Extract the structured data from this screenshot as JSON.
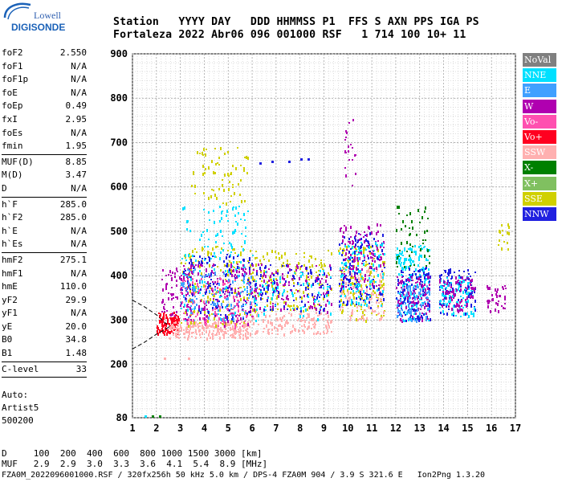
{
  "logo": {
    "line1": "Lowell",
    "line2": "DIGISONDE"
  },
  "header": {
    "labels": "Station   YYYY DAY   DDD HHMMSS P1  FFS S AXN PPS IGA PS",
    "values": "Fortaleza 2022 Abr06 096 001000 RSF   1 714 100 10+ 11"
  },
  "params": {
    "group1": [
      {
        "k": "foF2",
        "v": "2.550"
      },
      {
        "k": "foF1",
        "v": "N/A"
      },
      {
        "k": "foF1p",
        "v": "N/A"
      },
      {
        "k": "foE",
        "v": "N/A"
      },
      {
        "k": "foEp",
        "v": "0.49"
      },
      {
        "k": "fxI",
        "v": "2.95"
      },
      {
        "k": "foEs",
        "v": "N/A"
      },
      {
        "k": "fmin",
        "v": "1.95"
      }
    ],
    "group2": [
      {
        "k": "MUF(D)",
        "v": "8.85"
      },
      {
        "k": "M(D)",
        "v": "3.47"
      },
      {
        "k": "D",
        "v": "N/A"
      }
    ],
    "group3": [
      {
        "k": "h`F",
        "v": "285.0"
      },
      {
        "k": "h`F2",
        "v": "285.0"
      },
      {
        "k": "h`E",
        "v": "N/A"
      },
      {
        "k": "h`Es",
        "v": "N/A"
      }
    ],
    "group4": [
      {
        "k": "hmF2",
        "v": "275.1"
      },
      {
        "k": "hmF1",
        "v": "N/A"
      },
      {
        "k": "hmE",
        "v": "110.0"
      },
      {
        "k": "yF2",
        "v": "29.9"
      },
      {
        "k": "yF1",
        "v": "N/A"
      },
      {
        "k": "yE",
        "v": "20.0"
      },
      {
        "k": "B0",
        "v": "34.8"
      },
      {
        "k": "B1",
        "v": "1.48"
      }
    ],
    "group5": [
      {
        "k": "C-level",
        "v": "33"
      }
    ]
  },
  "auto": {
    "line1": "Auto:",
    "line2": "Artist5",
    "line3": "500200"
  },
  "dtable": {
    "row1": "D     100  200  400  600  800 1000 1500 3000 [km]",
    "row2": "MUF   2.9  2.9  3.0  3.3  3.6  4.1  5.4  8.9 [MHz]"
  },
  "footer": "FZA0M_2022096001000.RSF / 320fx256h 50 kHz 5.0 km / DPS-4 FZA0M 904 / 3.9 S 321.6 E   Ion2Png 1.3.20",
  "legend": [
    {
      "name": "NoVal",
      "color": "#808080"
    },
    {
      "name": "NNE",
      "color": "#00e0ff"
    },
    {
      "name": "E",
      "color": "#40a0ff"
    },
    {
      "name": "W",
      "color": "#b000b0"
    },
    {
      "name": "Vo-",
      "color": "#ff50b0"
    },
    {
      "name": "Vo+",
      "color": "#ff0020"
    },
    {
      "name": "SSW",
      "color": "#ffb0b0"
    },
    {
      "name": "X-",
      "color": "#008000"
    },
    {
      "name": "X+",
      "color": "#80c060"
    },
    {
      "name": "SSE",
      "color": "#d0d000"
    },
    {
      "name": "NNW",
      "color": "#2020e0"
    }
  ],
  "chart_data": {
    "type": "scatter",
    "title": "",
    "xlabel": "",
    "ylabel": "",
    "xlim": [
      1,
      17
    ],
    "ylim": [
      80,
      900
    ],
    "x_ticks": [
      1,
      2,
      3,
      4,
      5,
      6,
      7,
      8,
      9,
      10,
      11,
      12,
      13,
      14,
      15,
      16,
      17
    ],
    "y_ticks": [
      80,
      200,
      300,
      400,
      500,
      600,
      700,
      800,
      900
    ],
    "grid": true,
    "legend_position": "right",
    "clusters": [
      {
        "x": [
          2.0,
          2.9
        ],
        "y": [
          270,
          320
        ],
        "series": "Vo+",
        "density": 120
      },
      {
        "x": [
          2.2,
          3.5
        ],
        "y": [
          300,
          420
        ],
        "series": "W",
        "density": 80
      },
      {
        "x": [
          2.5,
          6.0
        ],
        "y": [
          260,
          300
        ],
        "series": "SSW",
        "density": 220
      },
      {
        "x": [
          3.0,
          6.0
        ],
        "y": [
          290,
          470
        ],
        "series": "SSE",
        "density": 160
      },
      {
        "x": [
          3.0,
          6.0
        ],
        "y": [
          300,
          560
        ],
        "series": "NNE",
        "density": 140
      },
      {
        "x": [
          3.0,
          6.0
        ],
        "y": [
          290,
          430
        ],
        "series": "W",
        "density": 140
      },
      {
        "x": [
          3.0,
          6.0
        ],
        "y": [
          300,
          450
        ],
        "series": "NNW",
        "density": 110
      },
      {
        "x": [
          3.0,
          6.0
        ],
        "y": [
          280,
          400
        ],
        "series": "Vo-",
        "density": 90
      },
      {
        "x": [
          3.0,
          6.0
        ],
        "y": [
          300,
          420
        ],
        "series": "E",
        "density": 100
      },
      {
        "x": [
          3.4,
          5.8
        ],
        "y": [
          560,
          690
        ],
        "series": "SSE",
        "density": 70
      },
      {
        "x": [
          6.0,
          9.3
        ],
        "y": [
          270,
          320
        ],
        "series": "SSW",
        "density": 130
      },
      {
        "x": [
          6.0,
          9.3
        ],
        "y": [
          320,
          460
        ],
        "series": "SSE",
        "density": 150
      },
      {
        "x": [
          6.0,
          9.3
        ],
        "y": [
          320,
          430
        ],
        "series": "W",
        "density": 110
      },
      {
        "x": [
          6.0,
          9.3
        ],
        "y": [
          320,
          430
        ],
        "series": "NNW",
        "density": 90
      },
      {
        "x": [
          6.0,
          9.3
        ],
        "y": [
          300,
          420
        ],
        "series": "NNE",
        "density": 70
      },
      {
        "x": [
          9.6,
          11.5
        ],
        "y": [
          300,
          470
        ],
        "series": "SSE",
        "density": 150
      },
      {
        "x": [
          9.6,
          11.5
        ],
        "y": [
          300,
          420
        ],
        "series": "SSW",
        "density": 120
      },
      {
        "x": [
          9.6,
          11.5
        ],
        "y": [
          360,
          520
        ],
        "series": "W",
        "density": 130
      },
      {
        "x": [
          9.6,
          11.5
        ],
        "y": [
          330,
          500
        ],
        "series": "NNW",
        "density": 110
      },
      {
        "x": [
          9.6,
          11.5
        ],
        "y": [
          330,
          480
        ],
        "series": "NNE",
        "density": 90
      },
      {
        "x": [
          9.8,
          10.3
        ],
        "y": [
          600,
          760
        ],
        "series": "W",
        "density": 20
      },
      {
        "x": [
          12.0,
          13.4
        ],
        "y": [
          300,
          470
        ],
        "series": "NNE",
        "density": 150
      },
      {
        "x": [
          12.0,
          13.4
        ],
        "y": [
          300,
          420
        ],
        "series": "NNW",
        "density": 110
      },
      {
        "x": [
          12.0,
          13.4
        ],
        "y": [
          300,
          400
        ],
        "series": "W",
        "density": 90
      },
      {
        "x": [
          12.0,
          13.4
        ],
        "y": [
          420,
          560
        ],
        "series": "X-",
        "density": 50
      },
      {
        "x": [
          12.0,
          13.4
        ],
        "y": [
          300,
          380
        ],
        "series": "E",
        "density": 80
      },
      {
        "x": [
          13.8,
          15.3
        ],
        "y": [
          310,
          420
        ],
        "series": "NNW",
        "density": 100
      },
      {
        "x": [
          13.8,
          15.3
        ],
        "y": [
          310,
          400
        ],
        "series": "NNE",
        "density": 80
      },
      {
        "x": [
          13.8,
          15.3
        ],
        "y": [
          320,
          400
        ],
        "series": "W",
        "density": 70
      },
      {
        "x": [
          15.8,
          16.6
        ],
        "y": [
          320,
          380
        ],
        "series": "W",
        "density": 40
      },
      {
        "x": [
          16.2,
          16.7
        ],
        "y": [
          460,
          520
        ],
        "series": "SSE",
        "density": 15
      }
    ],
    "isolated_points": [
      {
        "x": 6.3,
        "y": 655,
        "series": "NNW"
      },
      {
        "x": 6.8,
        "y": 660,
        "series": "NNW"
      },
      {
        "x": 7.5,
        "y": 660,
        "series": "NNW"
      },
      {
        "x": 8.0,
        "y": 665,
        "series": "NNW"
      },
      {
        "x": 8.3,
        "y": 665,
        "series": "NNW"
      },
      {
        "x": 1.5,
        "y": 85,
        "series": "NNE"
      },
      {
        "x": 1.8,
        "y": 85,
        "series": "X-"
      },
      {
        "x": 2.1,
        "y": 85,
        "series": "X-"
      },
      {
        "x": 2.3,
        "y": 215,
        "series": "SSW"
      },
      {
        "x": 3.3,
        "y": 215,
        "series": "SSW"
      }
    ],
    "profile_curve": {
      "x": [
        1.0,
        1.5,
        2.0,
        2.3,
        2.55
      ],
      "y": [
        235,
        250,
        268,
        277,
        285
      ]
    },
    "profile_curve2": {
      "x": [
        1.0,
        1.5,
        2.0,
        2.55
      ],
      "y": [
        345,
        330,
        312,
        285
      ]
    }
  }
}
